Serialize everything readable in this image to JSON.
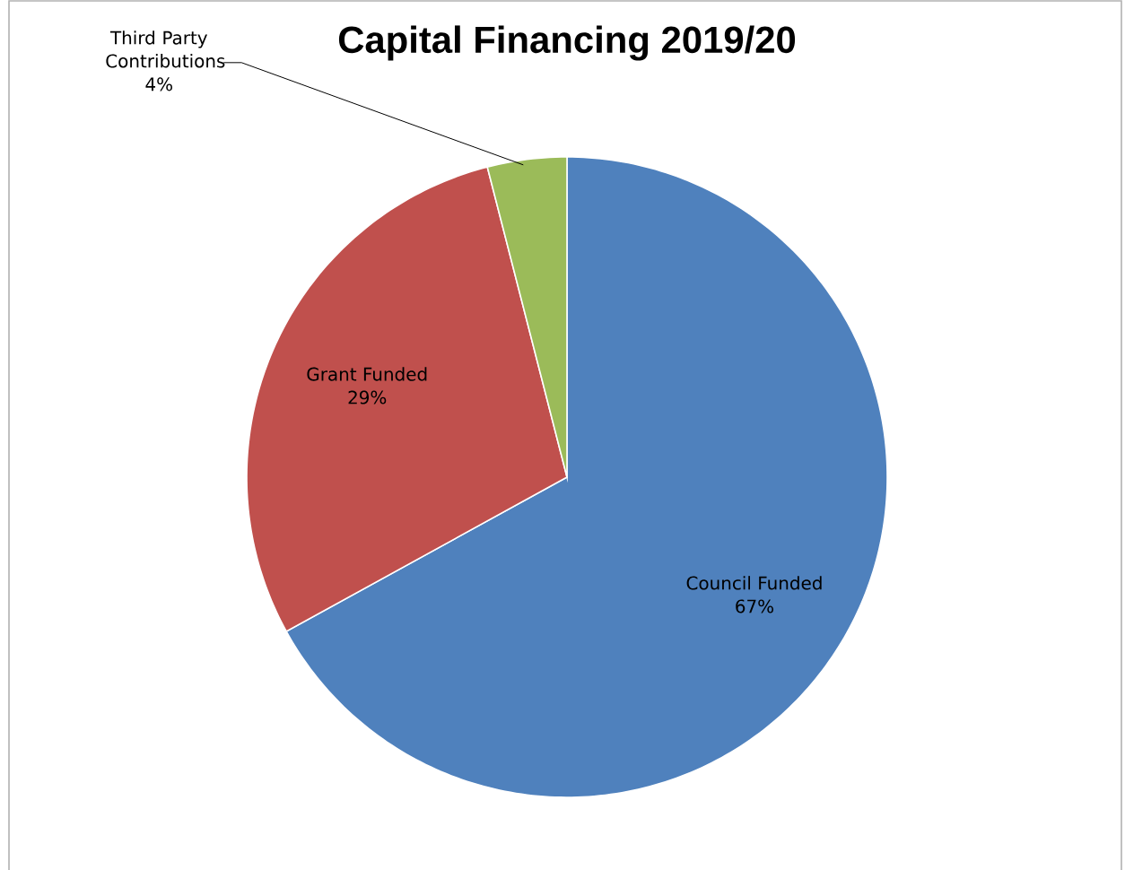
{
  "chart_data": {
    "type": "pie",
    "title": "Capital Financing 2019/20",
    "categories": [
      "Council Funded",
      "Grant Funded",
      "Third Party Contributions"
    ],
    "values": [
      67,
      29,
      4
    ],
    "value_labels": [
      "67%",
      "29%",
      "4%"
    ],
    "colors": [
      "#4f81bd",
      "#c0504d",
      "#9bbb59"
    ]
  }
}
